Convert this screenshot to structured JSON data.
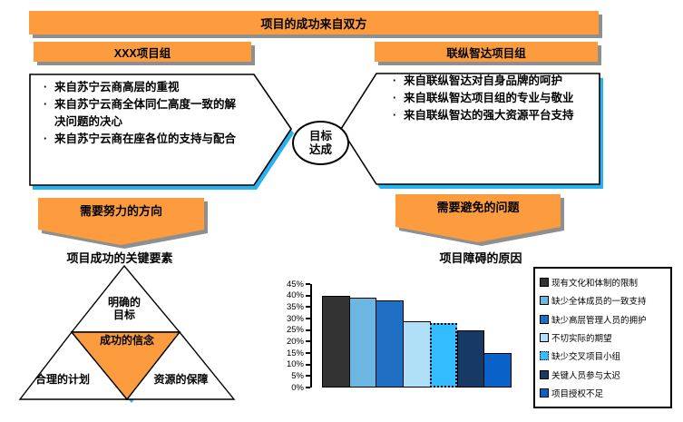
{
  "colors": {
    "orange": "#FC9C3F",
    "shadow_gray": "#8F8F8F",
    "cyan": "#29B2F0",
    "outline": "#000000"
  },
  "header": {
    "title": "项目的成功来自双方"
  },
  "left_group": {
    "title": "XXX项目组",
    "bullets": [
      "来自苏宁云商高层的重视",
      "来自苏宁云商全体同仁高度一致的解决问题的决心",
      "来自苏宁云商在座各位的支持与配合"
    ]
  },
  "right_group": {
    "title": "联纵智达项目组",
    "bullets": [
      "来自联纵智达对自身品牌的呵护",
      "来自联纵智达项目组的专业与敬业",
      "来自联纵智达的强大资源平台支持"
    ]
  },
  "center": {
    "goal": "目标\n达成"
  },
  "direction_arrow": {
    "label": "需要努力的方向"
  },
  "avoid_arrow": {
    "label": "需要避免的问题"
  },
  "pyramid": {
    "title": "项目成功的关键要素",
    "top_label": "明确的\n目标",
    "center_label": "成功的信念",
    "left_label": "合理的计划",
    "right_label": "资源的保障"
  },
  "chart_data": {
    "type": "bar",
    "title": "项目障碍的原因",
    "categories": [
      "现有文化和体制的限制",
      "缺少全体成员的一致支持",
      "缺少高层管理人员的拥护",
      "不切实际的期望",
      "缺少交叉项目小组",
      "关键人员参与太迟",
      "项目授权不足"
    ],
    "values": [
      40,
      39,
      38,
      29,
      28,
      25,
      15
    ],
    "unit": "%",
    "bar_colors": [
      "#333333",
      "#6CB6E2",
      "#1F6FC4",
      "#B0E0F8",
      "#33BCFF",
      "#173A64",
      "#0A62C8"
    ],
    "dotted_border_index": 4,
    "ylim": [
      0,
      45
    ],
    "ytick_step": 5,
    "grid": false,
    "legend_position": "right",
    "xlabel": "",
    "ylabel": ""
  }
}
